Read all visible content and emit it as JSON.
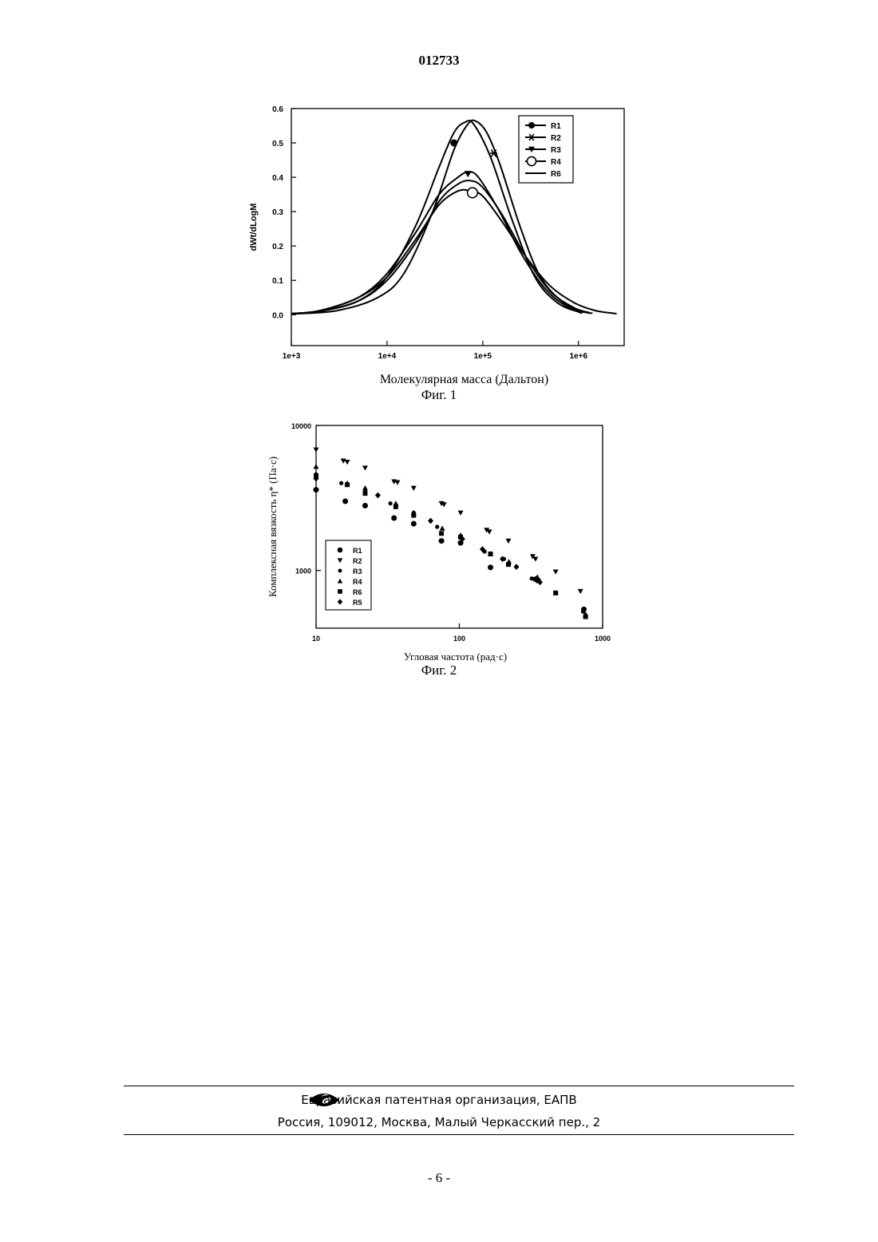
{
  "document": {
    "number": "012733",
    "page_number": "- 6 -"
  },
  "footer": {
    "org": "Евразийская патентная организация, ЕАПВ",
    "address": "Россия, 109012, Москва, Малый Черкасский пер., 2",
    "logo_icon": "eapo-eye-logo-icon"
  },
  "chart_data": [
    {
      "type": "line",
      "caption": "Фиг. 1",
      "xlabel": "Молекулярная масса (Дальтон)",
      "ylabel": "dWt/dLogM",
      "x_scale": "log",
      "xlim": [
        1000,
        3000000
      ],
      "ylim": [
        -0.09,
        0.6
      ],
      "x_ticks": [
        {
          "value": 1000,
          "label": "1e+3"
        },
        {
          "value": 10000,
          "label": "1e+4"
        },
        {
          "value": 100000,
          "label": "1e+5"
        },
        {
          "value": 1000000,
          "label": "1e+6"
        }
      ],
      "y_ticks": [
        {
          "value": 0.0,
          "label": "0.0"
        },
        {
          "value": 0.1,
          "label": "0.1"
        },
        {
          "value": 0.2,
          "label": "0.2"
        },
        {
          "value": 0.3,
          "label": "0.3"
        },
        {
          "value": 0.4,
          "label": "0.4"
        },
        {
          "value": 0.5,
          "label": "0.5"
        },
        {
          "value": 0.6,
          "label": "0.6"
        }
      ],
      "legend_position": "top-right",
      "series": [
        {
          "name": "R1",
          "marker": "filled-circle",
          "x": [
            1000,
            2000,
            5000,
            10000,
            20000,
            35000,
            50000,
            65000,
            80000,
            120000,
            200000,
            350000,
            600000,
            1000000,
            1100000
          ],
          "y": [
            0.003,
            0.01,
            0.04,
            0.11,
            0.26,
            0.43,
            0.53,
            0.56,
            0.555,
            0.46,
            0.28,
            0.11,
            0.035,
            0.008,
            0.005
          ],
          "marker_points": [
            [
              50000,
              0.5
            ]
          ]
        },
        {
          "name": "R2",
          "marker": "asterisk",
          "x": [
            1000,
            3000,
            8000,
            15000,
            30000,
            50000,
            70000,
            85000,
            110000,
            150000,
            250000,
            400000,
            700000,
            1200000,
            1400000
          ],
          "y": [
            0.002,
            0.012,
            0.05,
            0.12,
            0.3,
            0.48,
            0.555,
            0.563,
            0.53,
            0.44,
            0.25,
            0.11,
            0.035,
            0.007,
            0.005
          ],
          "marker_points": [
            [
              130000,
              0.47
            ]
          ]
        },
        {
          "name": "R3",
          "marker": "filled-triangle-down",
          "x": [
            1000,
            2000,
            5000,
            10000,
            20000,
            35000,
            55000,
            70000,
            90000,
            150000,
            250000,
            450000,
            800000,
            1300000
          ],
          "y": [
            0.003,
            0.012,
            0.05,
            0.12,
            0.24,
            0.35,
            0.4,
            0.415,
            0.4,
            0.3,
            0.18,
            0.075,
            0.02,
            0.005
          ],
          "marker_points": [
            [
              70000,
              0.41
            ]
          ]
        },
        {
          "name": "R4",
          "marker": "open-circle",
          "x": [
            1000,
            2000,
            5000,
            10000,
            20000,
            35000,
            55000,
            75000,
            100000,
            160000,
            280000,
            500000,
            900000,
            1500000,
            2500000
          ],
          "y": [
            0.003,
            0.012,
            0.05,
            0.11,
            0.22,
            0.32,
            0.36,
            0.36,
            0.345,
            0.27,
            0.17,
            0.085,
            0.035,
            0.012,
            0.003
          ],
          "marker_points": [
            [
              78000,
              0.355
            ]
          ]
        },
        {
          "name": "R6",
          "marker": "line",
          "x": [
            1000,
            2000,
            5000,
            10000,
            20000,
            35000,
            55000,
            75000,
            100000,
            160000,
            280000,
            500000,
            900000,
            1300000
          ],
          "y": [
            0.003,
            0.01,
            0.04,
            0.1,
            0.21,
            0.33,
            0.38,
            0.39,
            0.37,
            0.29,
            0.17,
            0.07,
            0.02,
            0.006
          ],
          "marker_points": []
        }
      ]
    },
    {
      "type": "scatter",
      "caption": "Фиг. 2",
      "xlabel": "Угловая частота (рад·с)",
      "ylabel": "Комплексная вязкость η* (Па·с)",
      "x_scale": "log",
      "y_scale": "log",
      "xlim": [
        10,
        1000
      ],
      "ylim": [
        400,
        10000
      ],
      "x_ticks": [
        {
          "value": 10,
          "label": "10"
        },
        {
          "value": 100,
          "label": "100"
        },
        {
          "value": 1000,
          "label": "1000"
        }
      ],
      "y_ticks": [
        {
          "value": 1000,
          "label": "1000"
        },
        {
          "value": 10000,
          "label": "10000"
        }
      ],
      "legend_position": "bottom-left",
      "series": [
        {
          "name": "R1",
          "marker": "filled-circle",
          "x": [
            10,
            16,
            22,
            35,
            48,
            75,
            102,
            165,
            340,
            740
          ],
          "y": [
            3600,
            3000,
            2800,
            2300,
            2100,
            1600,
            1550,
            1050,
            870,
            540
          ]
        },
        {
          "name": "R2",
          "marker": "filled-triangle-down",
          "x": [
            10,
            15.5,
            16.5,
            22,
            35,
            37,
            48,
            75,
            78,
            102,
            155,
            162,
            220,
            325,
            340,
            470,
            700
          ],
          "y": [
            6800,
            5700,
            5600,
            5100,
            4100,
            4050,
            3700,
            2900,
            2850,
            2500,
            1900,
            1850,
            1600,
            1250,
            1200,
            980,
            720
          ]
        },
        {
          "name": "R3",
          "marker": "filled-circle-small",
          "x": [
            10,
            15,
            22,
            33,
            48,
            70,
            102,
            150,
            205,
            320,
            730
          ],
          "y": [
            4600,
            4000,
            3500,
            2900,
            2500,
            2000,
            1700,
            1350,
            1200,
            880,
            520
          ]
        },
        {
          "name": "R4",
          "marker": "filled-triangle-up",
          "x": [
            10,
            16.5,
            22,
            36,
            48,
            76,
            102,
            165,
            222,
            350,
            470,
            760
          ],
          "y": [
            5200,
            4000,
            3700,
            2900,
            2500,
            1950,
            1750,
            1300,
            1150,
            900,
            700,
            500
          ]
        },
        {
          "name": "R6",
          "marker": "filled-square",
          "x": [
            10,
            16.5,
            22,
            36,
            48,
            75,
            102,
            165,
            220,
            355,
            470,
            760
          ],
          "y": [
            4500,
            3900,
            3400,
            2750,
            2400,
            1800,
            1700,
            1300,
            1100,
            850,
            700,
            480
          ]
        },
        {
          "name": "R5",
          "marker": "diamond",
          "x": [
            10,
            27,
            63,
            105,
            145,
            200,
            250,
            365
          ],
          "y": [
            4300,
            3300,
            2200,
            1650,
            1400,
            1200,
            1060,
            830
          ]
        }
      ]
    }
  ]
}
